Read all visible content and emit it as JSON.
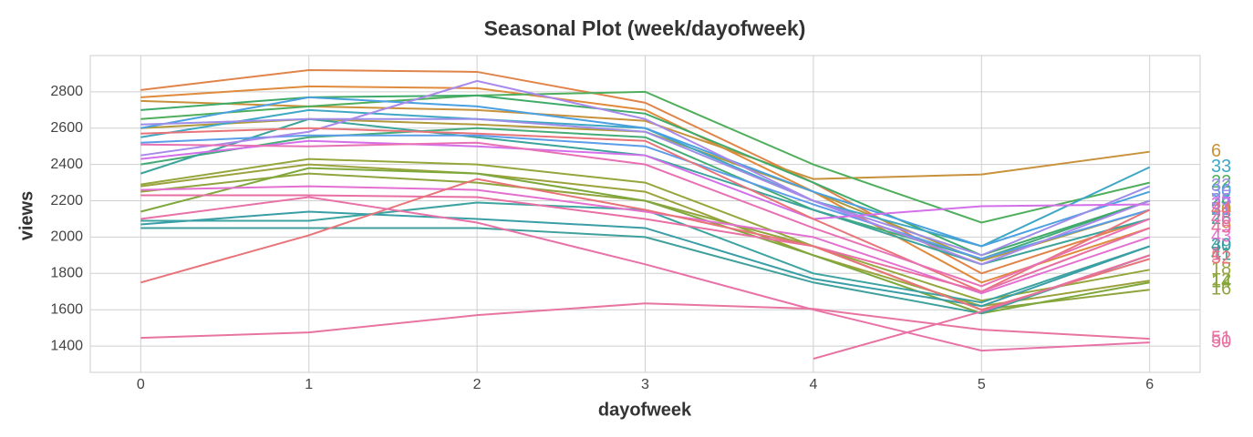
{
  "chart_data": {
    "type": "line",
    "title": "Seasonal Plot (week/dayofweek)",
    "x_label": "dayofweek",
    "y_label": "views",
    "x": [
      0,
      1,
      2,
      3,
      4,
      5,
      6
    ],
    "xlim": [
      -0.3,
      6.3
    ],
    "xticks": [
      0,
      1,
      2,
      3,
      4,
      5,
      6
    ],
    "ylim": [
      1255,
      3000
    ],
    "yticks": [
      1400,
      1600,
      1800,
      2000,
      2200,
      2400,
      2600,
      2800
    ],
    "grid": true,
    "series": [
      {
        "name": "48",
        "color": "#e0844a",
        "values": [
          2810,
          2920,
          2910,
          2740,
          2300,
          1800,
          2100
        ]
      },
      {
        "name": "49",
        "color": "#e08a3c",
        "values": [
          2770,
          2830,
          2820,
          2700,
          2250,
          1750,
          2050
        ]
      },
      {
        "name": "6",
        "color": "#c8923c",
        "values": [
          2750,
          2720,
          2700,
          2640,
          2320,
          2345,
          2470
        ]
      },
      {
        "name": "20",
        "color": "#b09a3c",
        "values": [
          2600,
          2650,
          2620,
          2580,
          2250,
          1870,
          2150
        ]
      },
      {
        "name": "12",
        "color": "#9ba23c",
        "values": [
          2280,
          2400,
          2350,
          2250,
          1900,
          1620,
          1760
        ]
      },
      {
        "name": "16",
        "color": "#8fa43c",
        "values": [
          2250,
          2350,
          2300,
          2200,
          1950,
          1600,
          1710
        ]
      },
      {
        "name": "14",
        "color": "#7fa83c",
        "values": [
          2140,
          2380,
          2350,
          2200,
          1900,
          1580,
          1750
        ]
      },
      {
        "name": "18",
        "color": "#94a63c",
        "values": [
          2290,
          2430,
          2400,
          2300,
          1950,
          1650,
          1820
        ]
      },
      {
        "name": "22",
        "color": "#4fae5c",
        "values": [
          2650,
          2720,
          2780,
          2800,
          2400,
          2080,
          2300
        ]
      },
      {
        "name": "24",
        "color": "#45ab78",
        "values": [
          2400,
          2550,
          2600,
          2550,
          2150,
          1880,
          2200
        ]
      },
      {
        "name": "26",
        "color": "#3fab6a",
        "values": [
          2700,
          2770,
          2780,
          2680,
          2300,
          1900,
          2200
        ]
      },
      {
        "name": "28",
        "color": "#3ba39a",
        "values": [
          2350,
          2650,
          2550,
          2450,
          2150,
          1850,
          2100
        ]
      },
      {
        "name": "39",
        "color": "#3ca3a0",
        "values": [
          2090,
          2090,
          2190,
          2150,
          1800,
          1640,
          1950
        ]
      },
      {
        "name": "40",
        "color": "#3a9ea6",
        "values": [
          2070,
          2140,
          2100,
          2050,
          1770,
          1620,
          1950
        ]
      },
      {
        "name": "41",
        "color": "#40a09c",
        "values": [
          2050,
          2050,
          2050,
          2000,
          1750,
          1580,
          1900
        ]
      },
      {
        "name": "33",
        "color": "#3ea7c4",
        "values": [
          2550,
          2700,
          2650,
          2600,
          2200,
          1950,
          2385
        ]
      },
      {
        "name": "30",
        "color": "#4aa0e0",
        "values": [
          2600,
          2770,
          2720,
          2600,
          2250,
          1950,
          2250
        ]
      },
      {
        "name": "31",
        "color": "#5b9de8",
        "values": [
          2520,
          2560,
          2560,
          2500,
          2180,
          1880,
          2150
        ]
      },
      {
        "name": "32",
        "color": "#9d8de8",
        "values": [
          2620,
          2650,
          2650,
          2580,
          2200,
          1900,
          2280
        ]
      },
      {
        "name": "35",
        "color": "#a888ea",
        "values": [
          2450,
          2580,
          2860,
          2650,
          2200,
          1850,
          2200
        ]
      },
      {
        "name": "37",
        "color": "#d36fe8",
        "values": [
          2430,
          2530,
          2500,
          2450,
          2100,
          2170,
          2180
        ]
      },
      {
        "name": "43",
        "color": "#e36fd0",
        "values": [
          2260,
          2280,
          2260,
          2140,
          2000,
          1690,
          2000
        ]
      },
      {
        "name": "44",
        "color": "#e8747a",
        "values": [
          2570,
          2600,
          2570,
          2530,
          2100,
          1700,
          2150
        ]
      },
      {
        "name": "45",
        "color": "#e86fa4",
        "values": [
          2230,
          2230,
          2220,
          2100,
          1950,
          1700,
          2050
        ]
      },
      {
        "name": "46",
        "color": "#e870b4",
        "values": [
          2510,
          2500,
          2520,
          2400,
          2050,
          1730,
          2100
        ]
      },
      {
        "name": "52",
        "color": "#e8747a",
        "values": [
          1750,
          2010,
          2320,
          2150,
          1950,
          1600,
          1880
        ]
      },
      {
        "name": "1",
        "color": "#e870a0",
        "values": [
          null,
          null,
          null,
          null,
          1330,
          1590,
          1900
        ]
      },
      {
        "name": "50",
        "color": "#e872a8",
        "values": [
          2100,
          2220,
          2080,
          1850,
          1600,
          1375,
          1420
        ]
      },
      {
        "name": "51",
        "color": "#e874a0",
        "values": [
          1445,
          1475,
          1570,
          1635,
          1605,
          1490,
          1440
        ]
      }
    ]
  }
}
